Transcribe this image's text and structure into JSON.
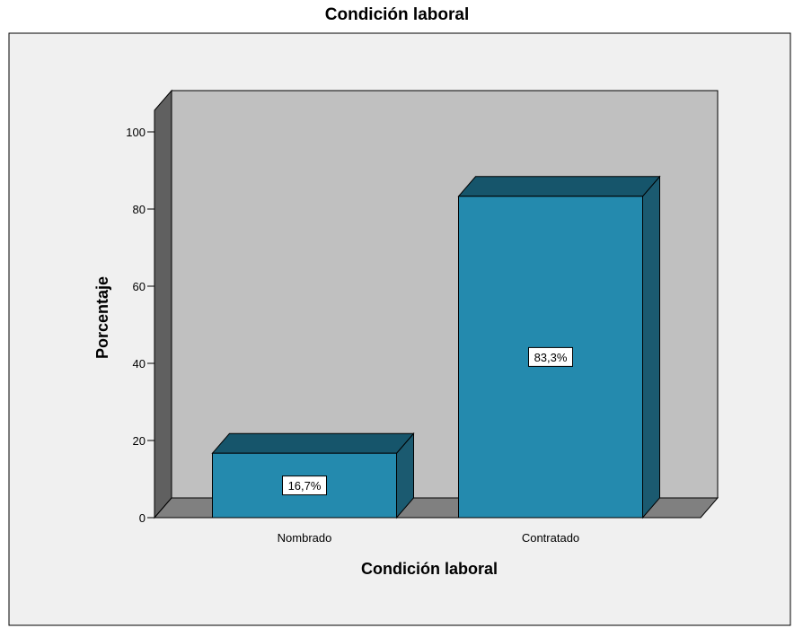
{
  "chart_data": {
    "type": "bar",
    "title": "Condición laboral",
    "xlabel": "Condición laboral",
    "ylabel": "Porcentaje",
    "categories": [
      "Nombrado",
      "Contratado"
    ],
    "values": [
      16.7,
      83.3
    ],
    "data_labels": [
      "16,7%",
      "83,3%"
    ],
    "ylim": [
      0,
      100
    ],
    "yticks": [
      0,
      20,
      40,
      60,
      80,
      100
    ],
    "ytick_labels": [
      "0",
      "20",
      "40",
      "60",
      "80",
      "100"
    ],
    "style": "3d",
    "colors": {
      "bar_front": "#248aae",
      "bar_top": "#16556b",
      "bar_side": "#1b5a70",
      "wall": "#c0c0c0",
      "floor": "#808080",
      "side_wall": "#606060",
      "frame_bg": "#f0f0f0"
    }
  }
}
